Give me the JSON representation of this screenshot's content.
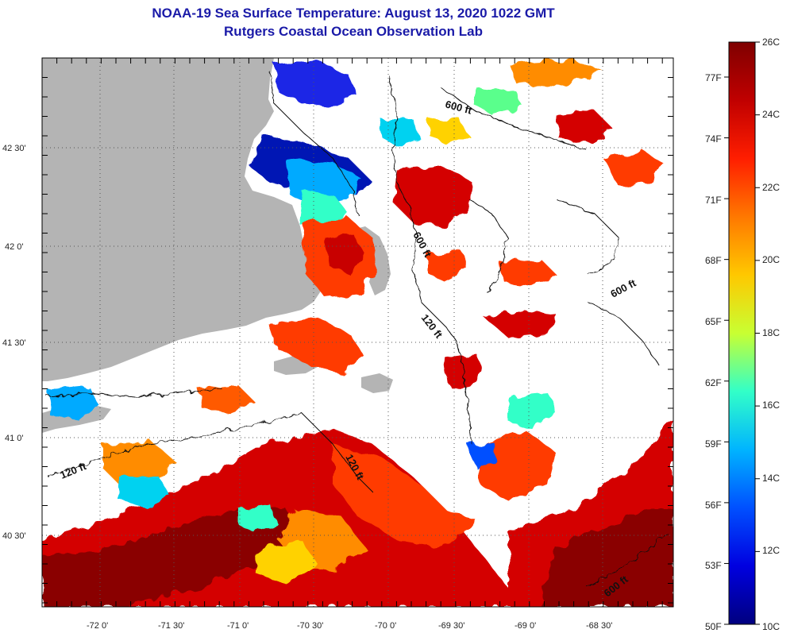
{
  "title": {
    "line1": "NOAA-19 Sea Surface Temperature:  August 13, 2020 1022 GMT",
    "line2": "Rutgers Coastal Ocean Observation Lab"
  },
  "map": {
    "longitude_ticks": [
      "-72 0'",
      "-71 30'",
      "-71 0'",
      "-70 30'",
      "-70 0'",
      "-69 30'",
      "-69 0'",
      "-68 30'"
    ],
    "latitude_ticks": [
      "42 30'",
      "42 0'",
      "41 30'",
      "41 0'",
      "40 30'"
    ],
    "contours": [
      {
        "label": "600 ft"
      },
      {
        "label": "600 ft"
      },
      {
        "label": "600 ft"
      },
      {
        "label": "600 ft"
      },
      {
        "label": "120 ft"
      },
      {
        "label": "120 ft"
      },
      {
        "label": "120 ft"
      }
    ],
    "colors": {
      "land": "#b4b4b4",
      "no_data": "#ffffff",
      "grid": "#555555"
    }
  },
  "colorbar": {
    "celsius_ticks": [
      "26C",
      "24C",
      "22C",
      "20C",
      "18C",
      "16C",
      "14C",
      "12C",
      "10C"
    ],
    "fahrenheit_ticks": [
      "77F",
      "74F",
      "71F",
      "68F",
      "65F",
      "62F",
      "59F",
      "56F",
      "53F",
      "50F"
    ],
    "range_celsius": [
      10,
      26
    ],
    "palette": [
      "#7f0000",
      "#e00000",
      "#ff5a00",
      "#ffb400",
      "#f0f000",
      "#7dff7d",
      "#00e0f0",
      "#0080ff",
      "#0010e0",
      "#00007f"
    ]
  }
}
